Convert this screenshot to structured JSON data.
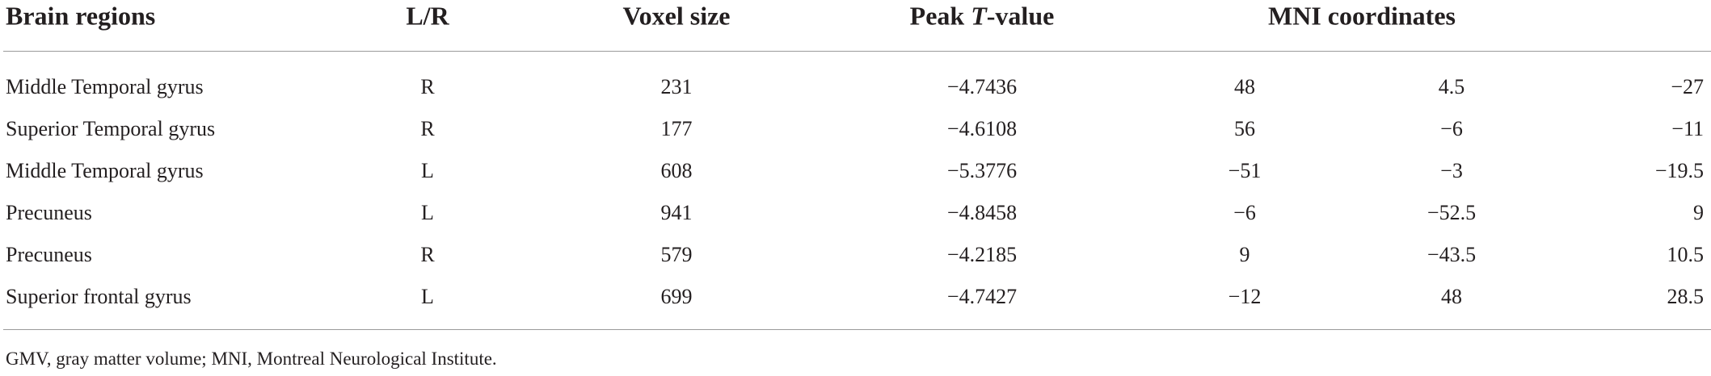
{
  "table": {
    "header": [
      "Brain regions",
      "L/R",
      "Voxel size",
      [
        "Peak ",
        "T",
        "-value"
      ],
      "MNI coordinates"
    ],
    "rows": [
      [
        "Middle Temporal gyrus",
        "R",
        "231",
        "−4.7436",
        "48",
        "4.5",
        "−27"
      ],
      [
        "Superior Temporal gyrus",
        "R",
        "177",
        "−4.6108",
        "56",
        "−6",
        "−11"
      ],
      [
        "Middle Temporal gyrus",
        "L",
        "608",
        "−5.3776",
        "−51",
        "−3",
        "−19.5"
      ],
      [
        "Precuneus",
        "L",
        "941",
        "−4.8458",
        "−6",
        "−52.5",
        "9"
      ],
      [
        "Precuneus",
        "R",
        "579",
        "−4.2185",
        "9",
        "−43.5",
        "10.5"
      ],
      [
        "Superior frontal gyrus",
        "L",
        "699",
        "−4.7427",
        "−12",
        "48",
        "28.5"
      ]
    ],
    "footnote": "GMV, gray matter volume; MNI, Montreal Neurological Institute."
  }
}
